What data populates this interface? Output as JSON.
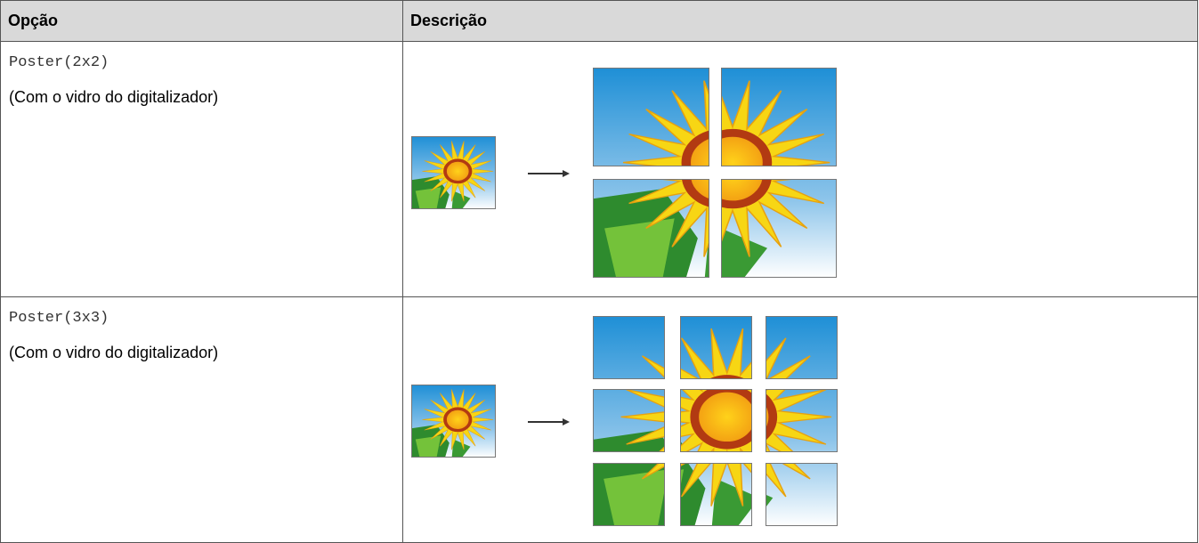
{
  "table": {
    "header": [
      "Opção",
      "Descrição"
    ],
    "rows": [
      {
        "option": "Poster(2x2)",
        "note": "(Com o vidro do digitalizador)"
      },
      {
        "option": "Poster(3x3)",
        "note": "(Com o vidro do digitalizador)"
      }
    ]
  }
}
